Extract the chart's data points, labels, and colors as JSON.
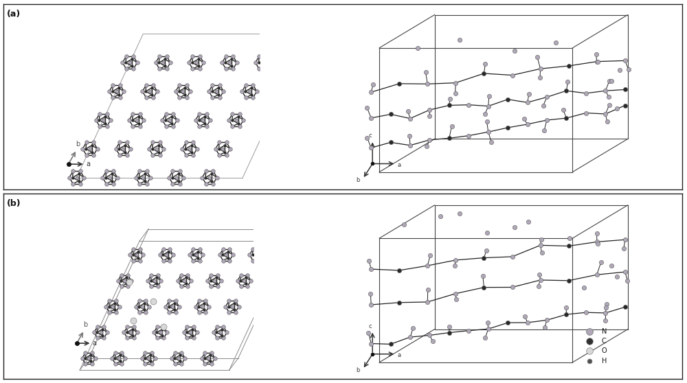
{
  "background_color": "#ffffff",
  "panel_bg": "#ffffff",
  "border_color": "#222222",
  "label_a": "(a)",
  "label_b": "(b)",
  "legend_items": [
    {
      "label": "N",
      "color": "#b0a8b8",
      "edgecolor": "#666666",
      "size": 7
    },
    {
      "label": "C",
      "color": "#303030",
      "edgecolor": "#888888",
      "size": 7
    },
    {
      "label": "O",
      "color": "#d8d8d8",
      "edgecolor": "#888888",
      "size": 7
    },
    {
      "label": "H",
      "color": "#505050",
      "edgecolor": "#888888",
      "size": 5
    }
  ],
  "atom_colors": {
    "N": "#b0a8b8",
    "C": "#282828",
    "O": "#d8d8d8",
    "H": "#505050"
  },
  "bond_color": "#222222",
  "box_color": "#444444",
  "cell_color": "#888888"
}
